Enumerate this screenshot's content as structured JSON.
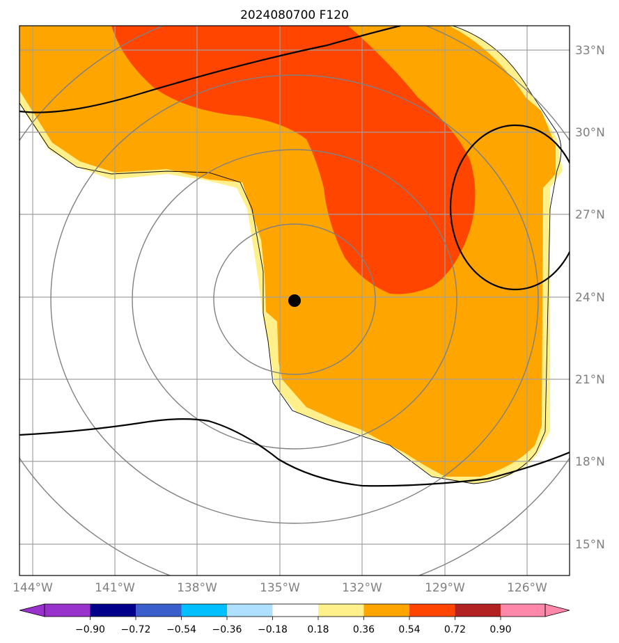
{
  "title": "2024080700 F120",
  "map": {
    "lat_labels": [
      "33°N",
      "30°N",
      "27°N",
      "24°N",
      "21°N",
      "18°N",
      "15°N"
    ],
    "lon_labels": [
      "144°W",
      "141°W",
      "138°W",
      "135°W",
      "132°W",
      "129°W",
      "126°W"
    ],
    "storm_center": {
      "lon": "134.4°W",
      "lat": "23.8°N"
    },
    "colors": {
      "fill_light": "#fff08c",
      "fill_mid": "#ffa500",
      "fill_high": "#ff4500",
      "gridline": "#a0a0a0",
      "range_ring": "#808080",
      "contour": "#000000"
    }
  },
  "colorbar": {
    "labels": [
      "−0.90",
      "−0.72",
      "−0.54",
      "−0.36",
      "−0.18",
      "0.18",
      "0.36",
      "0.54",
      "0.72",
      "0.90"
    ],
    "colors": [
      "#9932cc",
      "#00008b",
      "#3a5fcd",
      "#00bfff",
      "#b0e0ff",
      "#ffffff",
      "#fff08c",
      "#ffa500",
      "#ff4500",
      "#b22222",
      "#ff88aa",
      "#ff88aa"
    ]
  }
}
